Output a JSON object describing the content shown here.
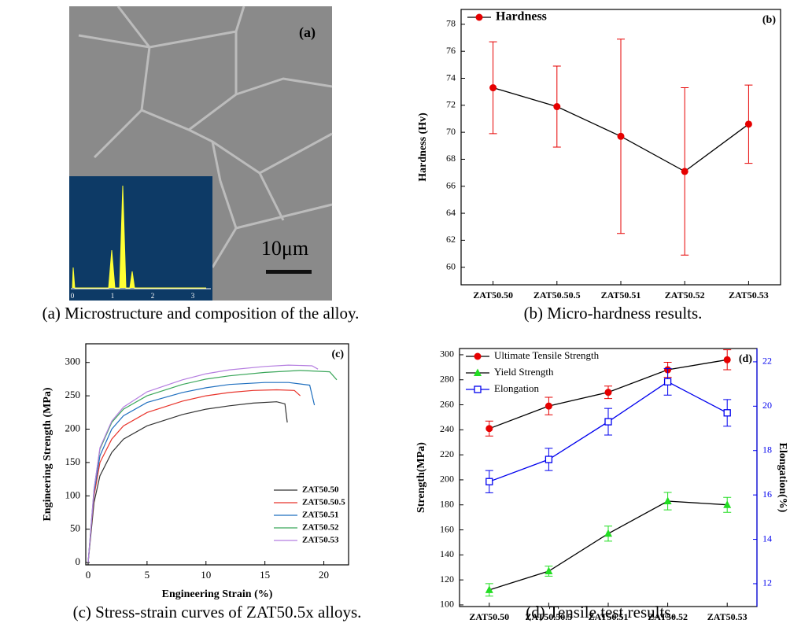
{
  "image_panel": {
    "label": "(a)",
    "scale_bar": "10μm",
    "eds_ticks": [
      0,
      1,
      2,
      3
    ],
    "caption": "(a) Microstructure and composition of the alloy."
  },
  "chart_data": [
    {
      "type": "line",
      "panel_label": "(b)",
      "caption": "(b) Micro-hardness results.",
      "y_label": "Hardness (Hv)",
      "categories": [
        "ZAT50.50",
        "ZAT50.50.5",
        "ZAT50.51",
        "ZAT50.52",
        "ZAT50.53"
      ],
      "ylim": [
        58.7,
        79.1
      ],
      "yticks": [
        60,
        62,
        64,
        66,
        68,
        70,
        72,
        74,
        76,
        78
      ],
      "legend": "upper left",
      "series": [
        {
          "name": "Hardness",
          "color": "#e60000",
          "line_color": "#000000",
          "marker": "circle",
          "values": [
            73.3,
            71.9,
            69.7,
            67.1,
            70.6
          ],
          "errors": [
            3.4,
            3.0,
            7.2,
            6.2,
            2.9
          ]
        }
      ]
    },
    {
      "type": "line",
      "panel_label": "(c)",
      "caption": "(c) Stress-strain curves of ZAT50.5x alloys.",
      "x_label": "Engineering Strain (%)",
      "y_label": "Engineering Strength  (MPa)",
      "xlim": [
        -0.2,
        22.1
      ],
      "xticks": [
        0,
        5,
        10,
        15,
        20
      ],
      "ylim": [
        -3.5,
        328
      ],
      "yticks": [
        0,
        50,
        100,
        150,
        200,
        250,
        300
      ],
      "legend": "lower right",
      "series": [
        {
          "name": "ZAT50.50",
          "color": "#333333",
          "x": [
            0,
            0.5,
            1,
            2,
            3,
            5,
            8,
            10,
            12,
            14,
            16,
            16.7,
            16.9
          ],
          "values": [
            0,
            90,
            130,
            165,
            185,
            205,
            222,
            230,
            235,
            239,
            241,
            238,
            210
          ]
        },
        {
          "name": "ZAT50.50.5",
          "color": "#e8332a",
          "x": [
            0,
            0.5,
            1,
            2,
            3,
            5,
            8,
            10,
            12,
            14,
            16,
            17.5,
            18
          ],
          "values": [
            0,
            100,
            150,
            185,
            205,
            225,
            242,
            250,
            255,
            258,
            259,
            258,
            250
          ]
        },
        {
          "name": "ZAT50.51",
          "color": "#1f6fbf",
          "x": [
            0,
            0.5,
            1,
            2,
            3,
            5,
            8,
            10,
            12,
            15,
            17,
            18.8,
            19.2
          ],
          "values": [
            0,
            105,
            160,
            200,
            220,
            240,
            255,
            262,
            267,
            270,
            270,
            266,
            236
          ]
        },
        {
          "name": "ZAT50.52",
          "color": "#3aa65a",
          "x": [
            0,
            0.5,
            1,
            2,
            3,
            5,
            8,
            10,
            12,
            15,
            18,
            20.5,
            21.1
          ],
          "values": [
            0,
            110,
            170,
            210,
            230,
            250,
            267,
            275,
            280,
            285,
            288,
            286,
            274
          ]
        },
        {
          "name": "ZAT50.53",
          "color": "#b57ee0",
          "x": [
            0,
            0.5,
            1,
            2,
            3,
            5,
            8,
            10,
            12,
            15,
            17,
            19,
            19.5
          ],
          "values": [
            0,
            110,
            172,
            212,
            233,
            256,
            274,
            283,
            289,
            294,
            296,
            295,
            290
          ]
        }
      ]
    },
    {
      "type": "line",
      "panel_label": "(d)",
      "caption": "(d) Tensile test results.",
      "y_label": "Strength(MPa)",
      "y2_label": "Elongation(%)",
      "y2_color": "#0000ee",
      "categories": [
        "ZAT50.50",
        "ZAT50.50.5",
        "ZAT50.51",
        "ZAT50.52",
        "ZAT50.53"
      ],
      "ylim": [
        98.7,
        305
      ],
      "yticks": [
        100,
        120,
        140,
        160,
        180,
        200,
        220,
        240,
        260,
        280,
        300
      ],
      "y2lim": [
        10.97,
        22.6
      ],
      "y2ticks": [
        12,
        14,
        16,
        18,
        20,
        22
      ],
      "legend": "upper left",
      "series": [
        {
          "name": "Ultimate Tensile Strength",
          "color": "#e60000",
          "line_color": "#000000",
          "marker": "circle",
          "values": [
            241,
            259,
            270,
            288,
            296
          ],
          "errors": [
            6,
            7,
            5,
            6,
            8
          ]
        },
        {
          "name": "Yield Strength",
          "color": "#22dd22",
          "line_color": "#000000",
          "marker": "triangle",
          "values": [
            112,
            127,
            157,
            183,
            180
          ],
          "errors": [
            5,
            4,
            6,
            7,
            6
          ]
        },
        {
          "name": "Elongation",
          "color": "#0000ee",
          "line_color": "#0000ee",
          "marker": "square",
          "axis": "y2",
          "values": [
            16.6,
            17.6,
            19.3,
            21.1,
            19.7
          ],
          "errors": [
            0.5,
            0.5,
            0.6,
            0.6,
            0.6
          ]
        }
      ]
    }
  ]
}
